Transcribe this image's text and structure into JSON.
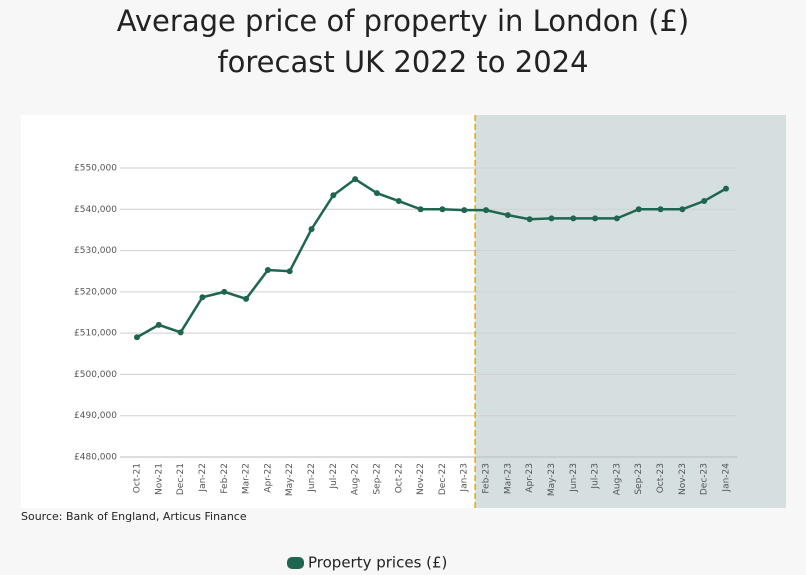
{
  "chart_data": {
    "type": "line",
    "title": "Average price of property in London (£)",
    "subtitle": "forecast UK 2022 to 2024",
    "source": "Source: Bank of England, Articus Finance",
    "categories": [
      "Oct-21",
      "Nov-21",
      "Dec-21",
      "Jan-22",
      "Feb-22",
      "Mar-22",
      "Apr-22",
      "May-22",
      "Jun-22",
      "Jul-22",
      "Aug-22",
      "Sep-22",
      "Oct-22",
      "Nov-22",
      "Dec-22",
      "Jan-23",
      "Feb-23",
      "Mar-23",
      "Apr-23",
      "May-23",
      "Jun-23",
      "Jul-23",
      "Aug-23",
      "Sep-23",
      "Oct-23",
      "Nov-23",
      "Dec-23",
      "Jan-24"
    ],
    "series": [
      {
        "name": "Property prices (£)",
        "color": "#1f6651",
        "values": [
          509000,
          512000,
          510200,
          518700,
          520000,
          518300,
          525300,
          525000,
          535200,
          543400,
          547300,
          543900,
          542000,
          540000,
          540000,
          539800,
          539800,
          538600,
          537600,
          537800,
          537800,
          537800,
          537800,
          540000,
          540000,
          540000,
          542000,
          545000
        ]
      }
    ],
    "forecast_from": "Feb-23",
    "ylim": [
      480000,
      550000
    ],
    "yticks": [
      {
        "value": 480000,
        "label": "£480,000"
      },
      {
        "value": 490000,
        "label": "£490,000"
      },
      {
        "value": 500000,
        "label": "£500,000"
      },
      {
        "value": 510000,
        "label": "£510,000"
      },
      {
        "value": 520000,
        "label": "£520,000"
      },
      {
        "value": 530000,
        "label": "£530,000"
      },
      {
        "value": 540000,
        "label": "£540,000"
      },
      {
        "value": 550000,
        "label": "£550,000"
      }
    ],
    "grid": true
  }
}
